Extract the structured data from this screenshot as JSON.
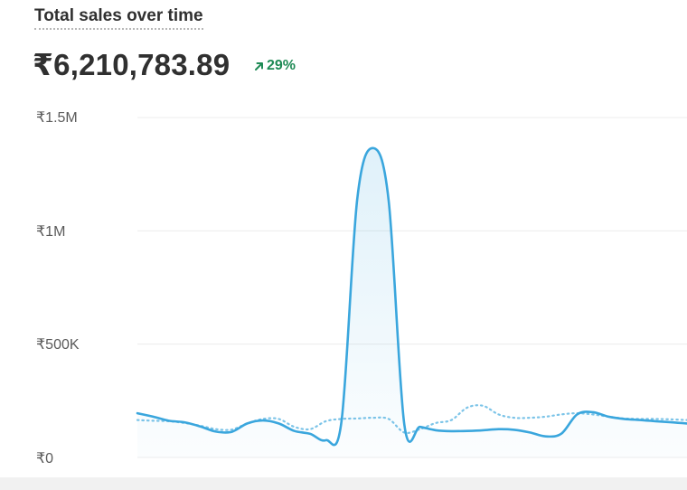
{
  "card": {
    "title": "Total sales over time",
    "total": "₹6,210,783.89",
    "change": "29%",
    "change_icon": "arrow-up-right-icon",
    "change_color": "#1e8a55"
  },
  "chart_data": {
    "type": "line",
    "title": "Total sales over time",
    "xlabel": "",
    "ylabel": "",
    "ylim": [
      0,
      1500000
    ],
    "y_ticks": [
      {
        "value": 1500000,
        "label": "₹1.5M"
      },
      {
        "value": 1000000,
        "label": "₹1M"
      },
      {
        "value": 500000,
        "label": "₹500K"
      },
      {
        "value": 0,
        "label": "₹0"
      }
    ],
    "grid": true,
    "x": [
      0,
      1,
      2,
      3,
      4,
      5,
      6,
      7,
      8,
      9,
      10,
      11,
      12,
      13,
      14,
      15,
      16,
      17,
      18,
      19,
      20,
      21,
      22,
      23,
      24,
      25,
      26,
      27,
      28,
      29,
      30,
      31,
      32,
      33,
      34,
      35
    ],
    "series": [
      {
        "style": "solid",
        "color": "#3aa6dd",
        "area_fill": true,
        "values": [
          195000,
          180000,
          162000,
          155000,
          137000,
          114000,
          113000,
          150000,
          163000,
          150000,
          117000,
          104000,
          76000,
          160000,
          1140000,
          1365000,
          1135000,
          145000,
          135000,
          120000,
          116000,
          117000,
          120000,
          125000,
          122000,
          110000,
          93000,
          105000,
          190000,
          200000,
          180000,
          170000,
          165000,
          160000,
          155000,
          150000
        ]
      },
      {
        "style": "dotted",
        "color": "#7cc4e8",
        "area_fill": false,
        "values": [
          165000,
          162000,
          160000,
          152000,
          140000,
          125000,
          123000,
          150000,
          170000,
          170000,
          135000,
          125000,
          160000,
          170000,
          172000,
          175000,
          170000,
          110000,
          125000,
          152000,
          165000,
          220000,
          228000,
          190000,
          175000,
          175000,
          180000,
          190000,
          195000,
          190000,
          180000,
          172000,
          170000,
          170000,
          168000,
          165000
        ]
      }
    ]
  }
}
